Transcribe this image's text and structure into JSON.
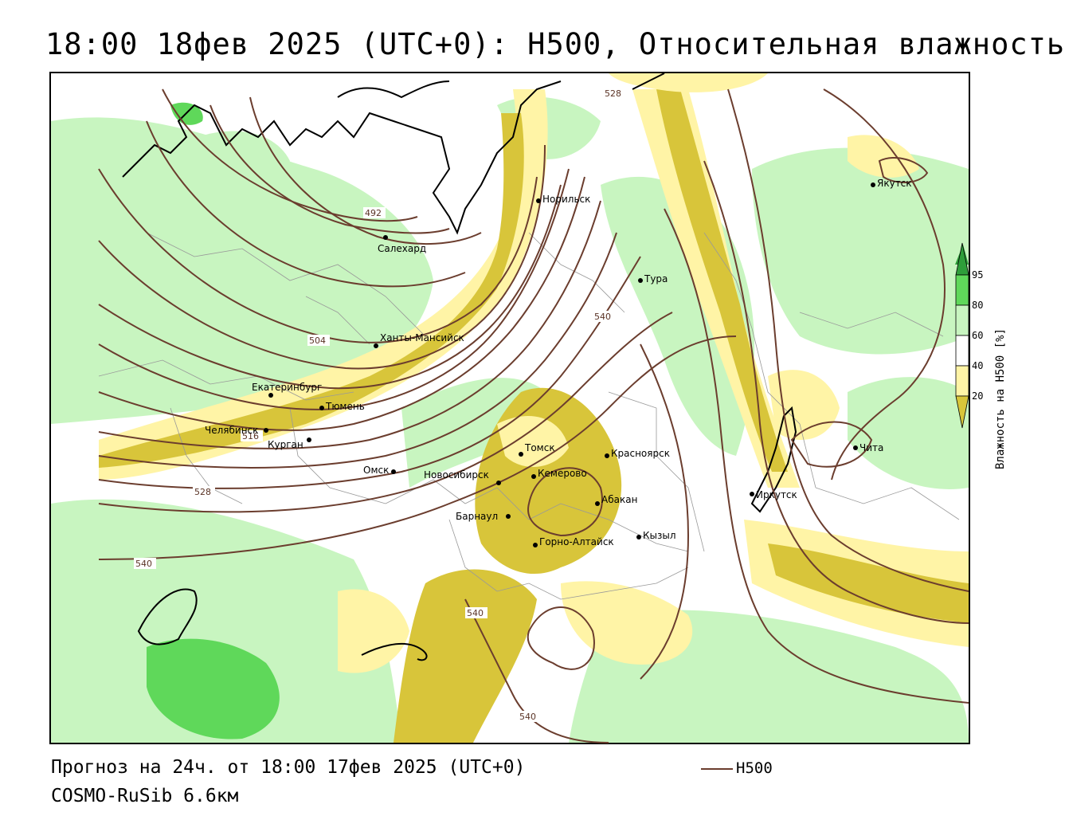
{
  "title": "18:00 18фев 2025 (UTC+0): H500, Относительная влажность",
  "footer": {
    "forecast": "Прогноз на 24ч. от 18:00 17фев 2025 (UTC+0)",
    "model": "COSMO-RuSib 6.6км"
  },
  "legend": {
    "line_label": "H500",
    "line_color": "#6b3d2e"
  },
  "colorbar": {
    "title": "Влажность на H500 [%]",
    "ticks": [
      "20",
      "40",
      "60",
      "80",
      "95"
    ],
    "colors": {
      "below20": "#d8c53a",
      "20_40": "#fff4a6",
      "40_60": "#ffffff",
      "60_80": "#c8f5c0",
      "80_95": "#5fd85a",
      "above95": "#2e9e3a"
    }
  },
  "isolines": [
    "492",
    "504",
    "516",
    "528",
    "528",
    "540",
    "540",
    "540",
    "540"
  ],
  "cities": [
    "Якутск",
    "Норильск",
    "Салехард",
    "Тура",
    "Ханты-Мансийск",
    "Екатеринбург",
    "Тюмень",
    "Челябинск",
    "Курган",
    "Омск",
    "Новосибирск",
    "Томск",
    "Красноярск",
    "Кемерово",
    "Абакан",
    "Барнаул",
    "Кызыл",
    "Горно-Алтайск",
    "Иркутск",
    "Чита"
  ]
}
